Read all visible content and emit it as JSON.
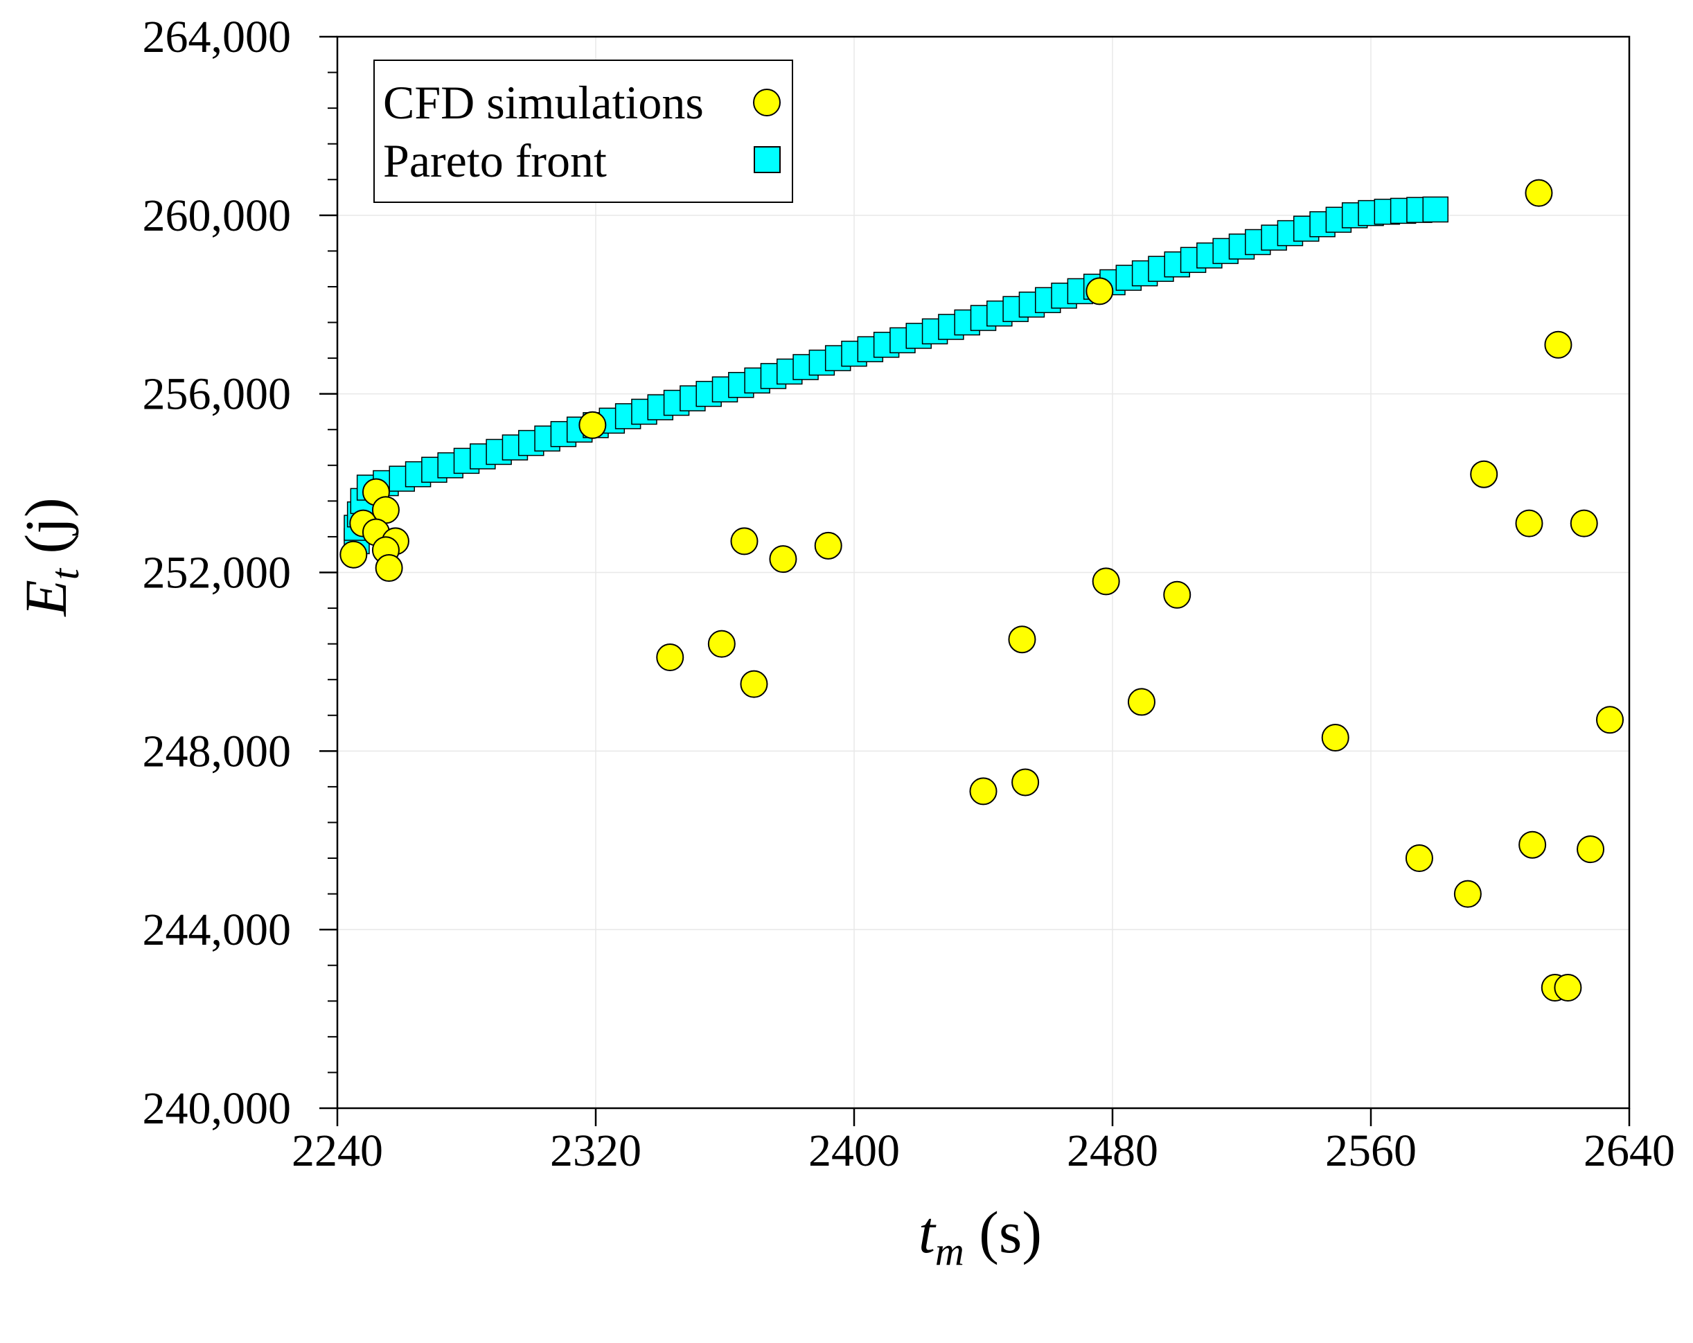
{
  "chart_data": {
    "type": "scatter",
    "title": "",
    "xlabel": {
      "main": "t",
      "sub": "m",
      "unit": " (s)"
    },
    "ylabel": {
      "main": "E",
      "sub": "t",
      "unit": " (j)"
    },
    "xlim": [
      2240,
      2640
    ],
    "ylim": [
      240000,
      264000
    ],
    "x_ticks": [
      2240,
      2320,
      2400,
      2480,
      2560,
      2640
    ],
    "x_tick_labels": [
      "2240",
      "2320",
      "2400",
      "2480",
      "2560",
      "2640"
    ],
    "y_ticks": [
      240000,
      244000,
      248000,
      252000,
      256000,
      260000,
      264000
    ],
    "y_tick_labels": [
      "240,000",
      "244,000",
      "248,000",
      "252,000",
      "256,000",
      "260,000",
      "264,000"
    ],
    "grid": true,
    "legend_position": "top-left",
    "series": [
      {
        "name": "CFD simulations",
        "marker": "circle",
        "color": "#ffff00",
        "points": [
          [
            2252,
            253800
          ],
          [
            2248,
            253100
          ],
          [
            2255,
            253400
          ],
          [
            2252,
            252900
          ],
          [
            2258,
            252700
          ],
          [
            2255,
            252500
          ],
          [
            2245,
            252400
          ],
          [
            2256,
            252100
          ],
          [
            2319,
            255300
          ],
          [
            2343,
            250100
          ],
          [
            2359,
            250400
          ],
          [
            2366,
            252700
          ],
          [
            2369,
            249500
          ],
          [
            2378,
            252300
          ],
          [
            2392,
            252600
          ],
          [
            2440,
            247100
          ],
          [
            2452,
            250500
          ],
          [
            2453,
            247300
          ],
          [
            2476,
            258300
          ],
          [
            2478,
            251800
          ],
          [
            2489,
            249100
          ],
          [
            2500,
            251500
          ],
          [
            2549,
            248300
          ],
          [
            2575,
            245600
          ],
          [
            2590,
            244800
          ],
          [
            2595,
            254200
          ],
          [
            2609,
            253100
          ],
          [
            2612,
            260500
          ],
          [
            2610,
            245900
          ],
          [
            2618,
            257100
          ],
          [
            2617,
            242700
          ],
          [
            2621,
            242700
          ],
          [
            2626,
            253100
          ],
          [
            2628,
            245800
          ],
          [
            2634,
            248700
          ]
        ]
      },
      {
        "name": "Pareto front",
        "marker": "square",
        "color": "#00ffff",
        "points": [
          [
            2246,
            252700
          ],
          [
            2246,
            253000
          ],
          [
            2247,
            253300
          ],
          [
            2248,
            253600
          ],
          [
            2250,
            253900
          ],
          [
            2255,
            254000
          ],
          [
            2260,
            254100
          ],
          [
            2265,
            254200
          ],
          [
            2270,
            254300
          ],
          [
            2275,
            254400
          ],
          [
            2280,
            254500
          ],
          [
            2285,
            254600
          ],
          [
            2290,
            254700
          ],
          [
            2295,
            254800
          ],
          [
            2300,
            254900
          ],
          [
            2305,
            255000
          ],
          [
            2310,
            255100
          ],
          [
            2315,
            255200
          ],
          [
            2320,
            255300
          ],
          [
            2325,
            255400
          ],
          [
            2330,
            255500
          ],
          [
            2335,
            255600
          ],
          [
            2340,
            255700
          ],
          [
            2345,
            255800
          ],
          [
            2350,
            255900
          ],
          [
            2355,
            256000
          ],
          [
            2360,
            256100
          ],
          [
            2365,
            256200
          ],
          [
            2370,
            256300
          ],
          [
            2375,
            256400
          ],
          [
            2380,
            256500
          ],
          [
            2385,
            256600
          ],
          [
            2390,
            256700
          ],
          [
            2395,
            256800
          ],
          [
            2400,
            256900
          ],
          [
            2405,
            257000
          ],
          [
            2410,
            257100
          ],
          [
            2415,
            257200
          ],
          [
            2420,
            257300
          ],
          [
            2425,
            257400
          ],
          [
            2430,
            257500
          ],
          [
            2435,
            257600
          ],
          [
            2440,
            257700
          ],
          [
            2445,
            257800
          ],
          [
            2450,
            257900
          ],
          [
            2455,
            258000
          ],
          [
            2460,
            258100
          ],
          [
            2465,
            258200
          ],
          [
            2470,
            258300
          ],
          [
            2475,
            258400
          ],
          [
            2480,
            258500
          ],
          [
            2485,
            258600
          ],
          [
            2490,
            258700
          ],
          [
            2495,
            258800
          ],
          [
            2500,
            258900
          ],
          [
            2505,
            259000
          ],
          [
            2510,
            259100
          ],
          [
            2515,
            259200
          ],
          [
            2520,
            259300
          ],
          [
            2525,
            259400
          ],
          [
            2530,
            259500
          ],
          [
            2535,
            259600
          ],
          [
            2540,
            259700
          ],
          [
            2545,
            259800
          ],
          [
            2550,
            259900
          ],
          [
            2555,
            260000
          ],
          [
            2560,
            260050
          ],
          [
            2565,
            260080
          ],
          [
            2570,
            260100
          ],
          [
            2575,
            260120
          ],
          [
            2580,
            260130
          ]
        ]
      }
    ]
  }
}
